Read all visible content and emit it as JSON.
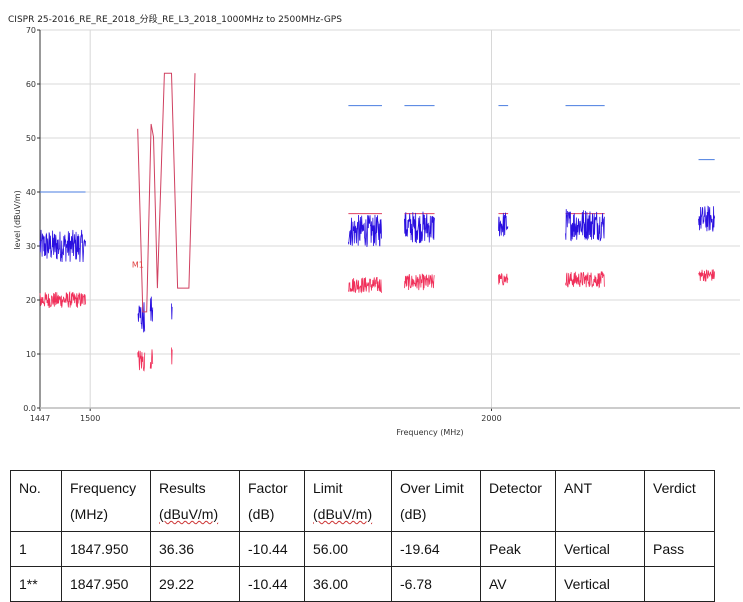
{
  "title": "CISPR 25-2016_RE_RE_2018_分段_RE_L3_2018_1000MHz to 2500MHz-GPS",
  "chart_data": {
    "type": "line",
    "xlabel": "Frequency (MHz)",
    "ylabel": "level (dBuV/m)",
    "xscale": "log",
    "xlim": [
      1447,
      2390
    ],
    "ylim": [
      0,
      70
    ],
    "xticks": [
      {
        "v": 1447,
        "label": "1447"
      },
      {
        "v": 1500,
        "label": "1500"
      },
      {
        "v": 2000,
        "label": "2000"
      }
    ],
    "yticks": [
      {
        "v": 0,
        "label": "0.0"
      },
      {
        "v": 10,
        "label": "10"
      },
      {
        "v": 20,
        "label": "20"
      },
      {
        "v": 30,
        "label": "30"
      },
      {
        "v": 40,
        "label": "40"
      },
      {
        "v": 50,
        "label": "50"
      },
      {
        "v": 60,
        "label": "60"
      },
      {
        "v": 70,
        "label": "70"
      }
    ],
    "grid": true,
    "colors": {
      "peak": "#2a10e0",
      "average": "#f0305a",
      "peak_limit": "#4a7de0",
      "average_limit": "#e04060",
      "gps_mask": "#d04060",
      "grid": "#d8d8d8"
    },
    "segments": [
      {
        "f": [
          1447,
          1495
        ],
        "peak_limit": 40,
        "avg_limit": null,
        "peak_mean": 30,
        "peak_spread": 3,
        "avg_mean": 20,
        "avg_spread": 1.5
      },
      {
        "f": [
          1805,
          1849
        ],
        "peak_limit": 56,
        "avg_limit": 36,
        "peak_mean": 32.8,
        "peak_spread": 3,
        "avg_mean": 22.8,
        "avg_spread": 1.5
      },
      {
        "f": [
          1879,
          1920
        ],
        "peak_limit": 56,
        "avg_limit": 36,
        "peak_mean": 33.5,
        "peak_spread": 3,
        "avg_mean": 23.3,
        "avg_spread": 1.5
      },
      {
        "f": [
          2010,
          2024
        ],
        "peak_limit": 56,
        "avg_limit": 36,
        "peak_mean": 34,
        "peak_spread": 2.5,
        "avg_mean": 23.8,
        "avg_spread": 1.2
      },
      {
        "f": [
          2109,
          2169
        ],
        "peak_limit": 56,
        "avg_limit": 36,
        "peak_mean": 34,
        "peak_spread": 3,
        "avg_mean": 23.8,
        "avg_spread": 1.5
      },
      {
        "f": [
          2320,
          2347
        ],
        "peak_limit": 46,
        "avg_limit": null,
        "peak_mean": 35,
        "peak_spread": 2.5,
        "avg_mean": 24.6,
        "avg_spread": 1.2
      }
    ],
    "gps_bars": [
      {
        "f": [
          1552,
          1560
        ],
        "peak": [
          14,
          20
        ],
        "avg": [
          6.5,
          11
        ]
      },
      {
        "f": [
          1566,
          1569
        ],
        "peak": [
          16,
          21
        ],
        "avg": [
          7,
          11
        ]
      },
      {
        "f": [
          1590,
          1590.8
        ],
        "peak": [
          16,
          21
        ],
        "avg": [
          6.5,
          12
        ]
      }
    ],
    "gps_mask": [
      [
        1552,
        51.7
      ],
      [
        1557.7,
        17.8
      ],
      [
        1562,
        17.8
      ],
      [
        1567,
        52.6
      ],
      [
        1569.6,
        50.2
      ],
      [
        1574,
        22.2
      ],
      [
        1582,
        62
      ],
      [
        1590,
        62
      ],
      [
        1597,
        22.2
      ],
      [
        1610,
        22.2
      ],
      [
        1617,
        62
      ]
    ],
    "markers": [
      {
        "label": "M1",
        "f": 1560,
        "v": 26
      }
    ]
  },
  "table": {
    "headers": [
      [
        "No.",
        ""
      ],
      [
        "Frequency",
        "(MHz)"
      ],
      [
        "Results",
        "(dBuV/m)"
      ],
      [
        "Factor",
        "(dB)"
      ],
      [
        "Limit",
        "(dBuV/m)"
      ],
      [
        "Over Limit",
        "(dB)"
      ],
      [
        "Detector",
        ""
      ],
      [
        "ANT",
        ""
      ],
      [
        "Verdict",
        ""
      ]
    ],
    "rows": [
      [
        "1",
        "1847.950",
        "36.36",
        "-10.44",
        "56.00",
        "-19.64",
        "Peak",
        "Vertical",
        "Pass"
      ],
      [
        "1**",
        "1847.950",
        "29.22",
        "-10.44",
        "36.00",
        "-6.78",
        "AV",
        "Vertical",
        ""
      ]
    ]
  }
}
